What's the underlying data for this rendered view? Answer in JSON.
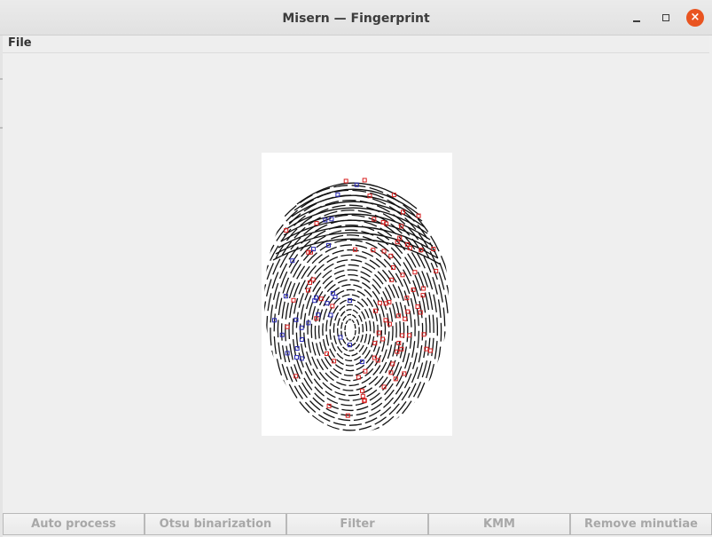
{
  "window": {
    "title": "Misern — Fingerprint",
    "accent_close_color": "#e95420"
  },
  "menubar": {
    "items": [
      {
        "label": "File"
      }
    ]
  },
  "image": {
    "description_icon": "fingerprint-icon",
    "minutiae_colors": {
      "ridge_ending": "#d81e1e",
      "bifurcation": "#2a2ab4"
    }
  },
  "buttons": [
    {
      "label": "Auto process",
      "enabled": false
    },
    {
      "label": "Otsu binarization",
      "enabled": false
    },
    {
      "label": "Filter",
      "enabled": false
    },
    {
      "label": "KMM",
      "enabled": false
    },
    {
      "label": "Remove minutiae",
      "enabled": false
    }
  ]
}
